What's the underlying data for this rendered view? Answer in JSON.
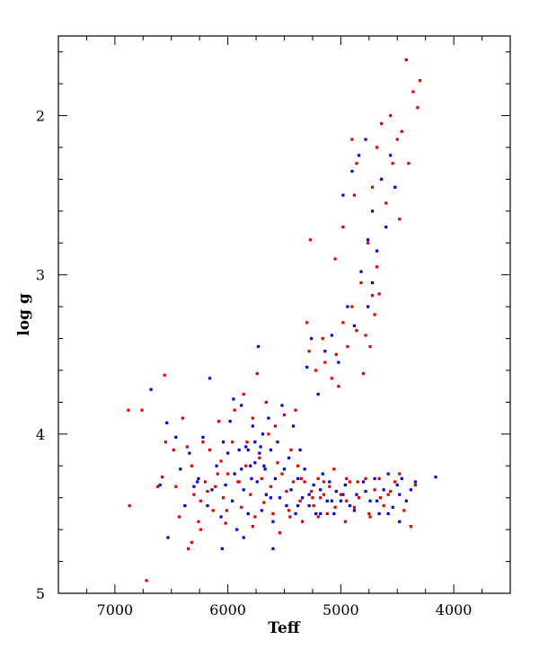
{
  "chart_data": {
    "type": "scatter",
    "title": "",
    "xlabel": "Teff",
    "ylabel": "log g",
    "xlim": [
      7500,
      3500
    ],
    "ylim": [
      5.0,
      1.5
    ],
    "x_inverted": true,
    "y_inverted": true,
    "grid": false,
    "legend": "none",
    "x_ticks": [
      7000,
      6000,
      5000,
      4000
    ],
    "y_ticks": [
      2,
      3,
      4,
      5
    ],
    "x_tick_labels": [
      "7000",
      "6000",
      "5000",
      "4000"
    ],
    "y_tick_labels": [
      "2",
      "3",
      "4",
      "5"
    ],
    "colors": {
      "series_a": "#e00000",
      "series_b": "#0000d8",
      "axes": "#000000"
    },
    "series": [
      {
        "color": "#e00000",
        "points": [
          [
            6880,
            3.85
          ],
          [
            6760,
            3.85
          ],
          [
            6870,
            4.45
          ],
          [
            6720,
            4.92
          ],
          [
            6560,
            3.63
          ],
          [
            6580,
            4.27
          ],
          [
            6480,
            4.1
          ],
          [
            6460,
            4.33
          ],
          [
            6430,
            4.52
          ],
          [
            6400,
            3.9
          ],
          [
            6360,
            4.08
          ],
          [
            6320,
            4.2
          ],
          [
            6300,
            4.38
          ],
          [
            6320,
            4.68
          ],
          [
            6260,
            4.55
          ],
          [
            6240,
            4.42
          ],
          [
            6200,
            4.3
          ],
          [
            6220,
            4.05
          ],
          [
            6160,
            4.1
          ],
          [
            6130,
            4.48
          ],
          [
            6110,
            4.33
          ],
          [
            6080,
            3.92
          ],
          [
            6060,
            4.17
          ],
          [
            6040,
            4.4
          ],
          [
            6020,
            4.56
          ],
          [
            6000,
            4.25
          ],
          [
            5960,
            4.05
          ],
          [
            5940,
            3.85
          ],
          [
            5900,
            4.3
          ],
          [
            5880,
            4.46
          ],
          [
            5860,
            3.75
          ],
          [
            5840,
            4.2
          ],
          [
            5800,
            4.38
          ],
          [
            5780,
            3.9
          ],
          [
            5760,
            4.52
          ],
          [
            5740,
            3.62
          ],
          [
            5720,
            4.15
          ],
          [
            5700,
            4.28
          ],
          [
            5680,
            4.43
          ],
          [
            5660,
            3.8
          ],
          [
            5640,
            4.0
          ],
          [
            5620,
            4.33
          ],
          [
            5600,
            4.5
          ],
          [
            5580,
            3.95
          ],
          [
            5560,
            4.18
          ],
          [
            5540,
            4.62
          ],
          [
            5520,
            4.25
          ],
          [
            5500,
            3.88
          ],
          [
            5480,
            4.36
          ],
          [
            5460,
            4.48
          ],
          [
            5440,
            4.1
          ],
          [
            5420,
            4.3
          ],
          [
            5400,
            3.85
          ],
          [
            5380,
            4.2
          ],
          [
            5360,
            4.42
          ],
          [
            5340,
            4.55
          ],
          [
            5320,
            4.3
          ],
          [
            5300,
            3.3
          ],
          [
            5280,
            3.48
          ],
          [
            5260,
            4.36
          ],
          [
            5240,
            4.45
          ],
          [
            5220,
            3.6
          ],
          [
            5200,
            4.28
          ],
          [
            5180,
            4.4
          ],
          [
            5160,
            3.4
          ],
          [
            5140,
            3.55
          ],
          [
            5120,
            4.5
          ],
          [
            5100,
            4.33
          ],
          [
            5080,
            3.65
          ],
          [
            5060,
            4.22
          ],
          [
            5040,
            3.5
          ],
          [
            5020,
            3.7
          ],
          [
            5000,
            4.38
          ],
          [
            4980,
            3.3
          ],
          [
            4960,
            4.55
          ],
          [
            4940,
            3.45
          ],
          [
            4920,
            4.3
          ],
          [
            4900,
            3.2
          ],
          [
            4880,
            4.46
          ],
          [
            4860,
            3.35
          ],
          [
            4840,
            4.4
          ],
          [
            4820,
            3.05
          ],
          [
            4800,
            3.62
          ],
          [
            4780,
            4.28
          ],
          [
            4760,
            2.8
          ],
          [
            4740,
            4.52
          ],
          [
            4720,
            2.45
          ],
          [
            4700,
            4.35
          ],
          [
            4680,
            2.2
          ],
          [
            4660,
            4.28
          ],
          [
            4640,
            2.05
          ],
          [
            4620,
            4.45
          ],
          [
            4600,
            2.55
          ],
          [
            4580,
            4.38
          ],
          [
            4560,
            2.0
          ],
          [
            4540,
            2.3
          ],
          [
            4520,
            4.3
          ],
          [
            4500,
            2.15
          ],
          [
            4480,
            2.65
          ],
          [
            4460,
            2.1
          ],
          [
            4440,
            4.48
          ],
          [
            4420,
            1.65
          ],
          [
            4400,
            2.3
          ],
          [
            4380,
            4.58
          ],
          [
            4360,
            1.85
          ],
          [
            4340,
            4.32
          ],
          [
            4320,
            1.95
          ],
          [
            4300,
            1.78
          ],
          [
            4720,
            3.13
          ],
          [
            4780,
            3.38
          ],
          [
            4700,
            3.25
          ],
          [
            4740,
            3.45
          ],
          [
            4680,
            2.95
          ],
          [
            4660,
            3.12
          ],
          [
            5270,
            2.78
          ],
          [
            5050,
            2.9
          ],
          [
            4980,
            2.7
          ],
          [
            4880,
            2.5
          ],
          [
            4860,
            2.3
          ],
          [
            4900,
            2.15
          ],
          [
            5780,
            4.58
          ],
          [
            5830,
            4.05
          ],
          [
            5910,
            4.3
          ],
          [
            6010,
            4.48
          ],
          [
            6090,
            4.25
          ],
          [
            6180,
            4.36
          ],
          [
            6240,
            4.6
          ],
          [
            6350,
            4.72
          ],
          [
            6550,
            4.05
          ],
          [
            6620,
            4.33
          ],
          [
            5200,
            4.52
          ],
          [
            5150,
            4.38
          ],
          [
            4950,
            4.42
          ],
          [
            4850,
            4.3
          ],
          [
            4750,
            4.5
          ],
          [
            4650,
            4.4
          ],
          [
            4560,
            4.36
          ],
          [
            4480,
            4.25
          ],
          [
            5450,
            4.52
          ],
          [
            5350,
            4.28
          ],
          [
            5250,
            4.4
          ],
          [
            5150,
            4.3
          ],
          [
            5050,
            4.46
          ],
          [
            4950,
            4.28
          ]
        ]
      },
      {
        "color": "#0000d8",
        "points": [
          [
            6680,
            3.72
          ],
          [
            6600,
            4.32
          ],
          [
            6540,
            3.93
          ],
          [
            6530,
            4.65
          ],
          [
            6460,
            4.02
          ],
          [
            6420,
            4.22
          ],
          [
            6380,
            4.45
          ],
          [
            6340,
            4.12
          ],
          [
            6300,
            4.33
          ],
          [
            6260,
            4.28
          ],
          [
            6220,
            4.02
          ],
          [
            6180,
            4.45
          ],
          [
            6160,
            3.65
          ],
          [
            6140,
            4.35
          ],
          [
            6100,
            4.2
          ],
          [
            6060,
            4.52
          ],
          [
            6040,
            4.05
          ],
          [
            6020,
            4.32
          ],
          [
            6000,
            4.12
          ],
          [
            5980,
            3.92
          ],
          [
            5960,
            4.42
          ],
          [
            5940,
            4.25
          ],
          [
            5920,
            4.6
          ],
          [
            5900,
            4.1
          ],
          [
            5880,
            3.82
          ],
          [
            5860,
            4.35
          ],
          [
            5840,
            4.08
          ],
          [
            5820,
            4.5
          ],
          [
            5800,
            4.2
          ],
          [
            5780,
            3.95
          ],
          [
            5760,
            4.05
          ],
          [
            5740,
            4.3
          ],
          [
            5730,
            3.45
          ],
          [
            5720,
            4.12
          ],
          [
            5700,
            4.48
          ],
          [
            5690,
            4.0
          ],
          [
            5680,
            4.2
          ],
          [
            5660,
            4.38
          ],
          [
            5640,
            3.9
          ],
          [
            5620,
            4.1
          ],
          [
            5600,
            4.55
          ],
          [
            5580,
            4.28
          ],
          [
            5560,
            4.05
          ],
          [
            5540,
            4.4
          ],
          [
            5520,
            3.82
          ],
          [
            5500,
            4.22
          ],
          [
            5480,
            4.45
          ],
          [
            5460,
            4.15
          ],
          [
            5440,
            4.35
          ],
          [
            5420,
            3.95
          ],
          [
            5400,
            4.5
          ],
          [
            5380,
            4.28
          ],
          [
            5360,
            4.1
          ],
          [
            5340,
            4.4
          ],
          [
            5320,
            4.22
          ],
          [
            5300,
            3.58
          ],
          [
            5280,
            4.45
          ],
          [
            5260,
            3.4
          ],
          [
            5240,
            4.32
          ],
          [
            5220,
            4.5
          ],
          [
            5200,
            3.75
          ],
          [
            5180,
            4.35
          ],
          [
            5160,
            4.25
          ],
          [
            5140,
            3.48
          ],
          [
            5120,
            4.42
          ],
          [
            5100,
            4.3
          ],
          [
            5080,
            3.38
          ],
          [
            5060,
            4.5
          ],
          [
            5040,
            4.36
          ],
          [
            5020,
            3.55
          ],
          [
            5000,
            4.42
          ],
          [
            4980,
            2.5
          ],
          [
            4960,
            4.32
          ],
          [
            4940,
            3.2
          ],
          [
            4920,
            4.45
          ],
          [
            4900,
            2.35
          ],
          [
            4880,
            3.32
          ],
          [
            4860,
            4.38
          ],
          [
            4840,
            2.25
          ],
          [
            4820,
            2.98
          ],
          [
            4800,
            4.3
          ],
          [
            4780,
            2.15
          ],
          [
            4760,
            2.78
          ],
          [
            4740,
            4.42
          ],
          [
            4720,
            2.6
          ],
          [
            4700,
            4.28
          ],
          [
            4680,
            2.85
          ],
          [
            4660,
            4.5
          ],
          [
            4640,
            2.4
          ],
          [
            4620,
            4.35
          ],
          [
            4600,
            2.7
          ],
          [
            4580,
            4.25
          ],
          [
            4560,
            2.25
          ],
          [
            4540,
            4.46
          ],
          [
            4520,
            2.45
          ],
          [
            4500,
            4.32
          ],
          [
            4480,
            4.38
          ],
          [
            4460,
            4.28
          ],
          [
            4420,
            4.42
          ],
          [
            4380,
            4.35
          ],
          [
            4340,
            4.3
          ],
          [
            4160,
            4.27
          ],
          [
            5600,
            4.72
          ],
          [
            5860,
            4.65
          ],
          [
            6050,
            4.72
          ],
          [
            6270,
            4.3
          ],
          [
            5950,
            3.78
          ],
          [
            5790,
            4.28
          ],
          [
            5710,
            4.08
          ],
          [
            5670,
            4.22
          ],
          [
            5760,
            4.18
          ],
          [
            5820,
            4.1
          ],
          [
            5880,
            4.22
          ],
          [
            5620,
            4.4
          ],
          [
            5380,
            4.45
          ],
          [
            5280,
            4.38
          ],
          [
            5180,
            4.5
          ],
          [
            5080,
            4.42
          ],
          [
            4980,
            4.38
          ],
          [
            4880,
            4.48
          ],
          [
            4780,
            4.36
          ],
          [
            4680,
            4.42
          ],
          [
            4580,
            4.5
          ],
          [
            4480,
            4.55
          ],
          [
            4720,
            3.05
          ],
          [
            4760,
            3.2
          ]
        ]
      }
    ]
  }
}
